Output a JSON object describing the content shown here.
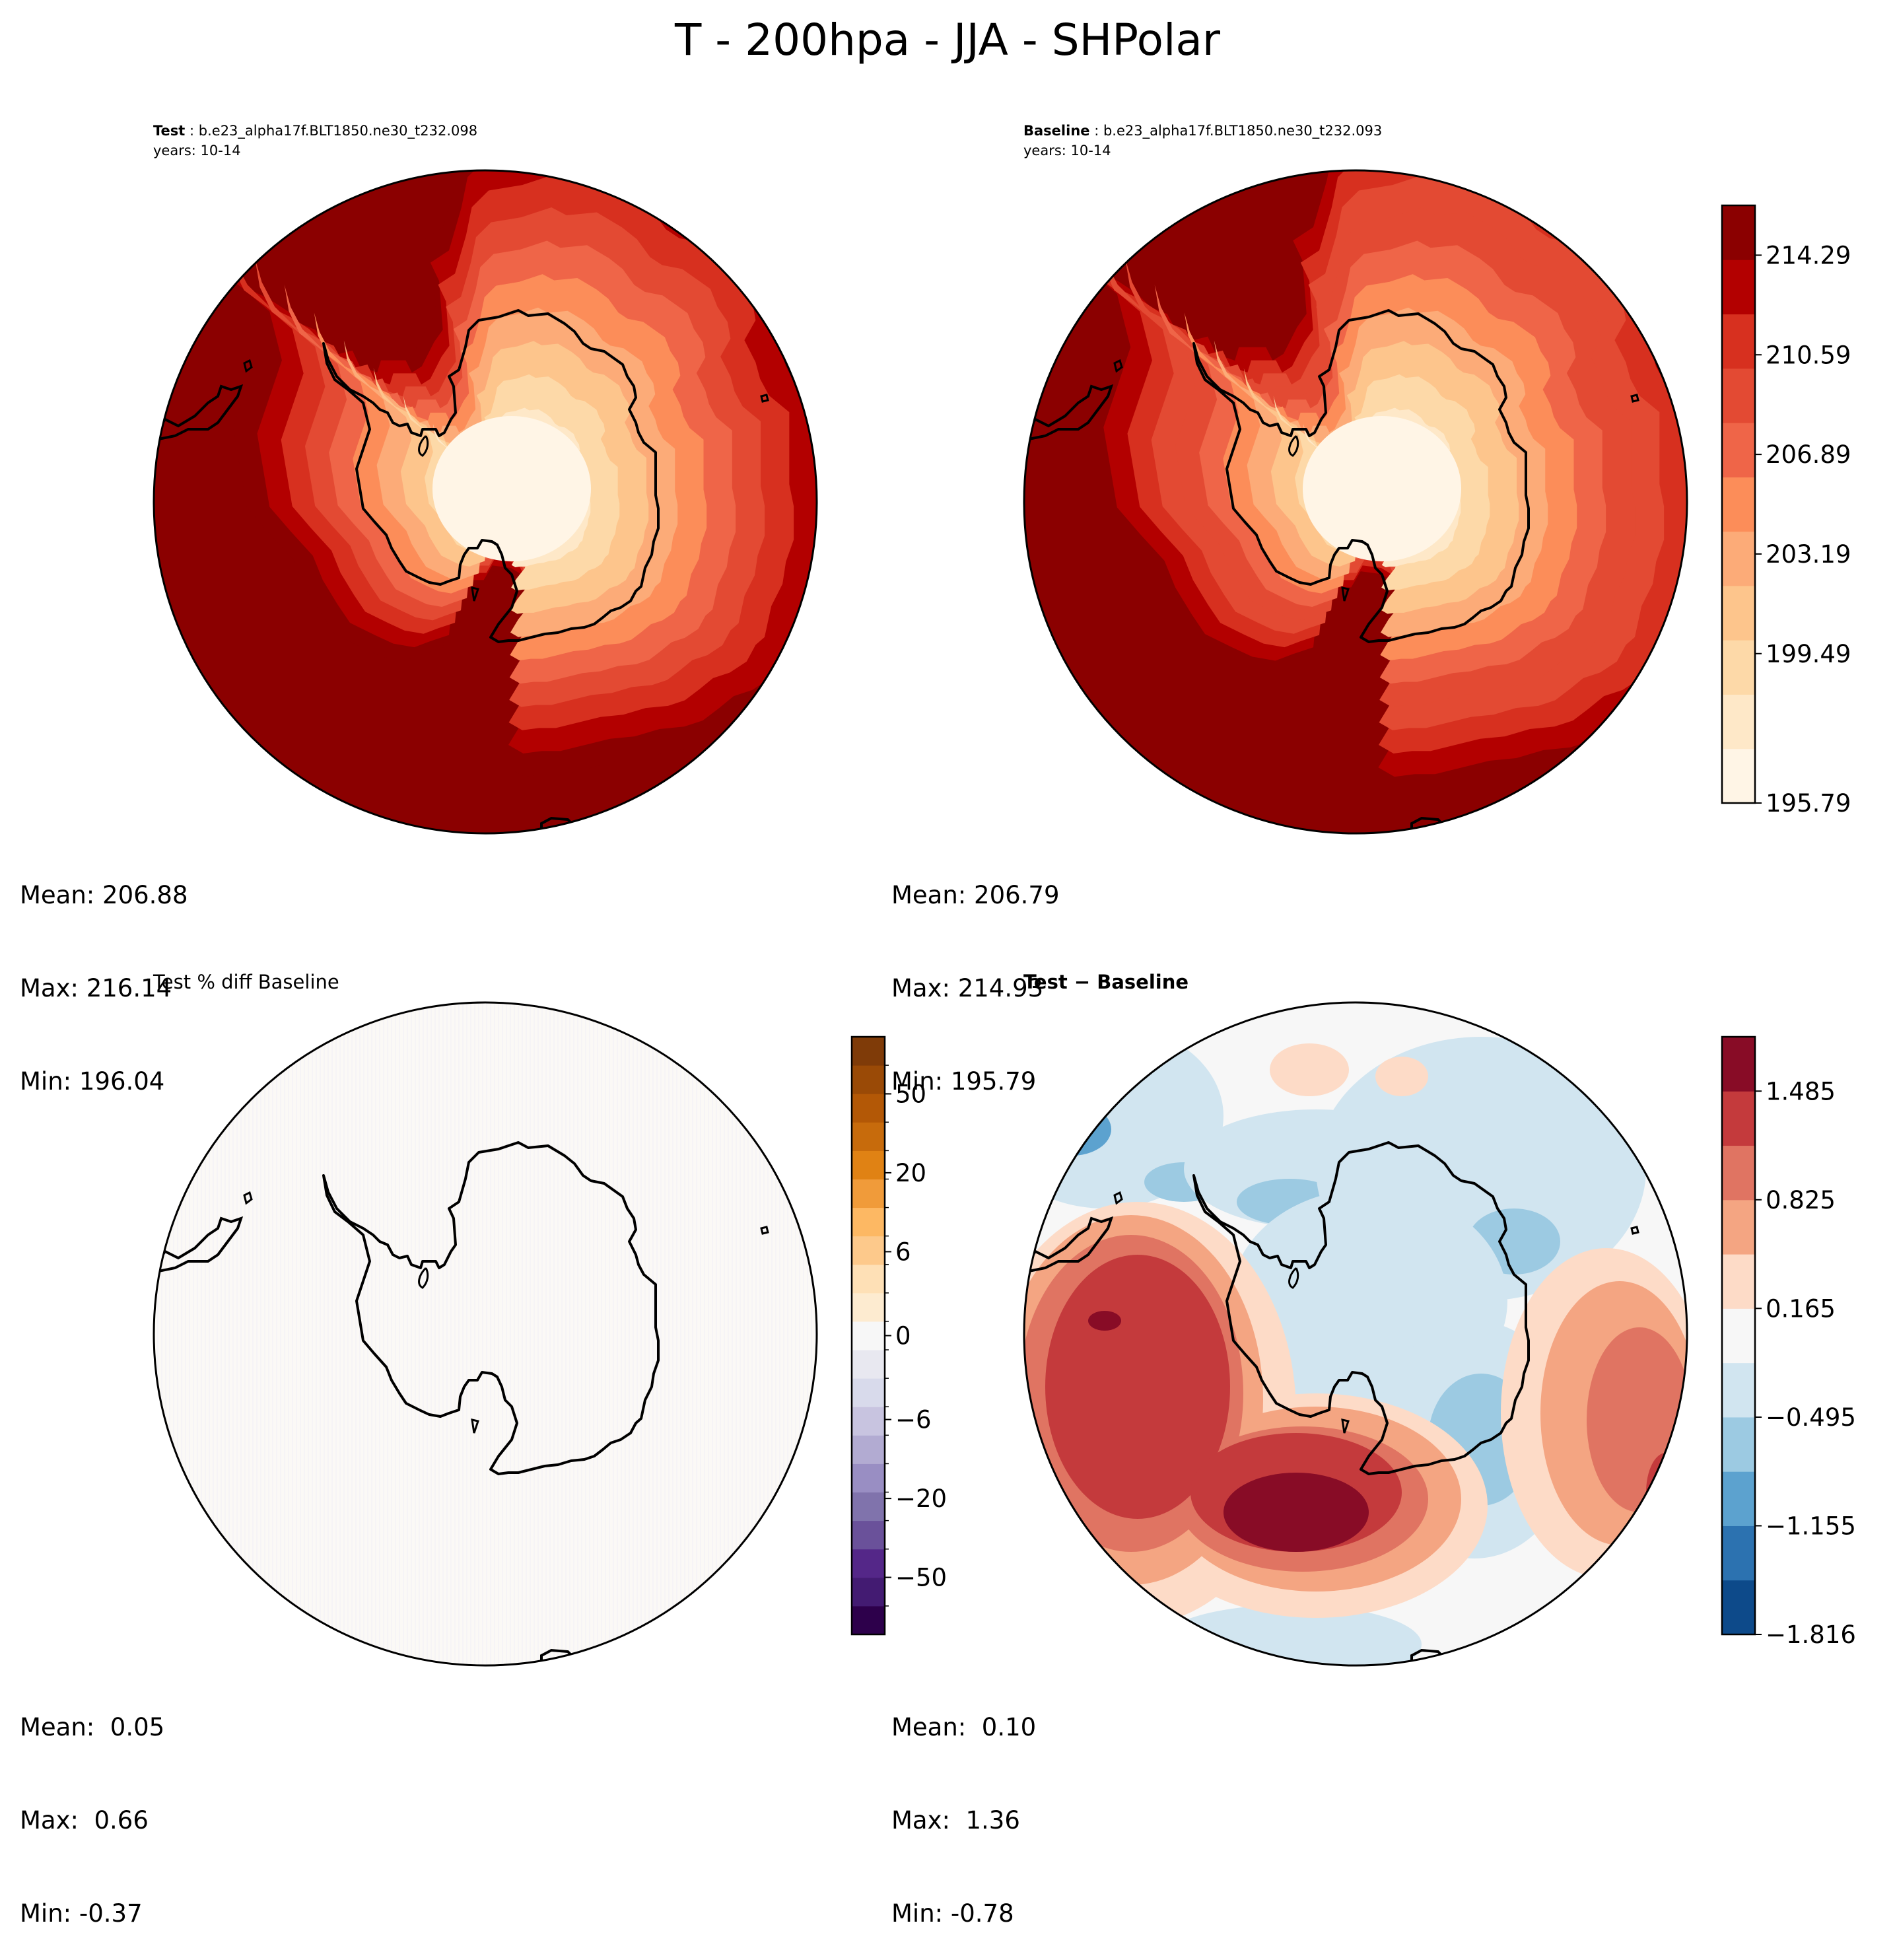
{
  "figure": {
    "suptitle": "T - 200hpa - JJA - SHPolar"
  },
  "panels": {
    "test": {
      "label": "Test",
      "case": "b.e23_alpha17f.BLT1850.ne30_t232.098",
      "years": "years: 10-14",
      "stats": [
        "Mean: 206.88",
        "Max: 216.14",
        "Min: 196.04"
      ]
    },
    "baseline": {
      "label": "Baseline",
      "case": "b.e23_alpha17f.BLT1850.ne30_t232.093",
      "years": "years: 10-14",
      "stats": [
        "Mean: 206.79",
        "Max: 214.93",
        "Min: 195.79"
      ]
    },
    "pctdiff": {
      "title": "Test % diff Baseline",
      "stats": [
        "Mean:  0.05",
        "Max:  0.66",
        "Min: -0.37"
      ]
    },
    "diff": {
      "title": "Test − Baseline",
      "stats": [
        "Mean:  0.10",
        "Max:  1.36",
        "Min: -0.78"
      ]
    }
  },
  "chart_data": [
    {
      "type": "heatmap",
      "title": "Test : b.e23_alpha17f.BLT1850.ne30_t232.098",
      "projection": "south-polar-stereographic",
      "field": "T 200hPa JJA",
      "center_value_approx": 196.5,
      "edge_value_approx": 214.5,
      "shares_colorbar_with": "Baseline"
    },
    {
      "type": "heatmap",
      "title": "Baseline : b.e23_alpha17f.BLT1850.ne30_t232.093",
      "projection": "south-polar-stereographic",
      "center_value_approx": 196.5,
      "edge_value_approx": 214.0,
      "colorbar": {
        "levels": [
          195.79,
          197.64,
          199.49,
          201.34,
          203.19,
          205.04,
          206.89,
          208.74,
          210.59,
          212.44,
          214.29,
          216.14
        ],
        "tick_labels": [
          "214.29",
          "210.59",
          "206.89",
          "203.19",
          "199.49",
          "195.79"
        ],
        "colors": [
          "#fff5e6",
          "#fee8c8",
          "#fdd9a8",
          "#fdc58c",
          "#fcab78",
          "#fc8d59",
          "#ef6548",
          "#e34a33",
          "#d7301f",
          "#b30000",
          "#8b0000"
        ]
      }
    },
    {
      "type": "heatmap",
      "title": "Test % diff Baseline",
      "projection": "south-polar-stereographic",
      "colorbar": {
        "tick_labels": [
          "50",
          "20",
          "6",
          "0",
          "−6",
          "−20",
          "−50"
        ],
        "colors": [
          "#2d004b",
          "#431b72",
          "#542788",
          "#6a519a",
          "#8073ac",
          "#998ec3",
          "#b2abd2",
          "#c8c4e0",
          "#d8daeb",
          "#e8e8f0",
          "#f7f7f7",
          "#fdebd0",
          "#fee0b6",
          "#fdc98b",
          "#fdb863",
          "#f09b3a",
          "#e08214",
          "#c76b0c",
          "#b35806",
          "#9a4a06",
          "#7f3b08"
        ]
      }
    },
    {
      "type": "heatmap",
      "title": "Test − Baseline",
      "projection": "south-polar-stereographic",
      "colorbar": {
        "levels": [
          -1.816,
          -1.486,
          -1.155,
          -0.825,
          -0.495,
          -0.165,
          0.165,
          0.495,
          0.825,
          1.155,
          1.485,
          1.816
        ],
        "tick_labels": [
          "1.485",
          "0.825",
          "0.165",
          "−0.495",
          "−1.155",
          "−1.816"
        ],
        "colors": [
          "#0d4a8a",
          "#2c72b0",
          "#5ca2cf",
          "#9ccae2",
          "#d1e5f0",
          "#f7f7f7",
          "#fddbc7",
          "#f4a582",
          "#e07462",
          "#c43a3c",
          "#880c26"
        ]
      }
    }
  ]
}
